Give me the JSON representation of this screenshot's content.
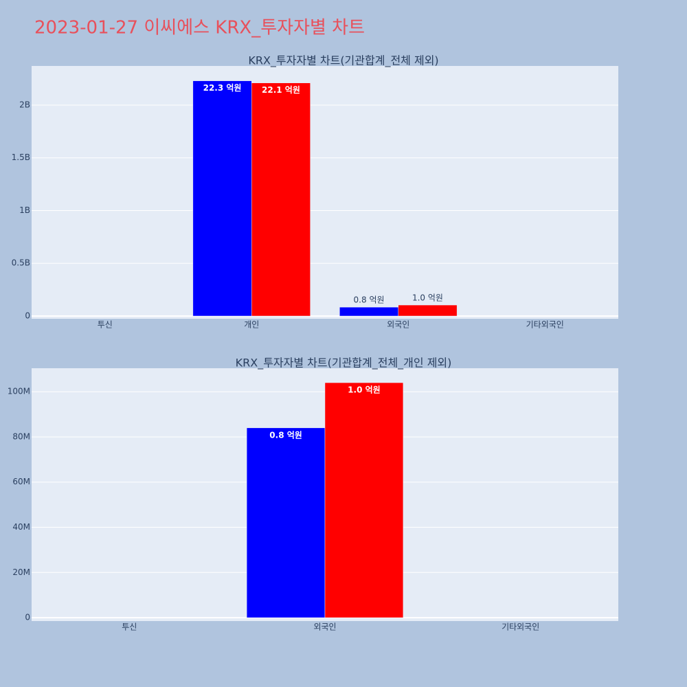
{
  "title": "2023-01-27 이씨에스 KRX_투자자별 차트",
  "chart_data": [
    {
      "type": "bar",
      "title": "KRX_투자자별 차트(기관합계_전체 제외)",
      "categories": [
        "투신",
        "개인",
        "외국인",
        "기타외국인"
      ],
      "series": [
        {
          "color": "#0000ff",
          "values": [
            null,
            2230000000,
            84000000,
            null
          ],
          "value_labels": [
            null,
            "22.3 억원",
            "0.8 억원",
            null
          ]
        },
        {
          "color": "#ff0000",
          "values": [
            null,
            2210000000,
            104000000,
            null
          ],
          "value_labels": [
            null,
            "22.1 억원",
            "1.0 억원",
            null
          ]
        }
      ],
      "ylim": [
        -26000000,
        2371000000
      ],
      "yticks": [
        0,
        {
          "value": 500000000,
          "label": "0.5B"
        },
        {
          "value": 1000000000,
          "label": "1B"
        },
        {
          "value": 1500000000,
          "label": "1.5B"
        },
        {
          "value": 2000000000,
          "label": "2B"
        }
      ],
      "grid": true
    },
    {
      "type": "bar",
      "title": "KRX_투자자별 차트(기관합계_전체_개인 제외)",
      "categories": [
        "투신",
        "외국인",
        "기타외국인"
      ],
      "series": [
        {
          "color": "#0000ff",
          "values": [
            null,
            84000000,
            null
          ],
          "value_labels": [
            null,
            "0.8 억원",
            null
          ]
        },
        {
          "color": "#ff0000",
          "values": [
            null,
            104000000,
            null
          ],
          "value_labels": [
            null,
            "1.0 억원",
            null
          ]
        }
      ],
      "ylim": [
        -1500000,
        110400000
      ],
      "yticks": [
        0,
        {
          "value": 20000000,
          "label": "20M"
        },
        {
          "value": 40000000,
          "label": "40M"
        },
        {
          "value": 60000000,
          "label": "60M"
        },
        {
          "value": 80000000,
          "label": "80M"
        },
        {
          "value": 100000000,
          "label": "100M"
        }
      ],
      "grid": true
    }
  ]
}
